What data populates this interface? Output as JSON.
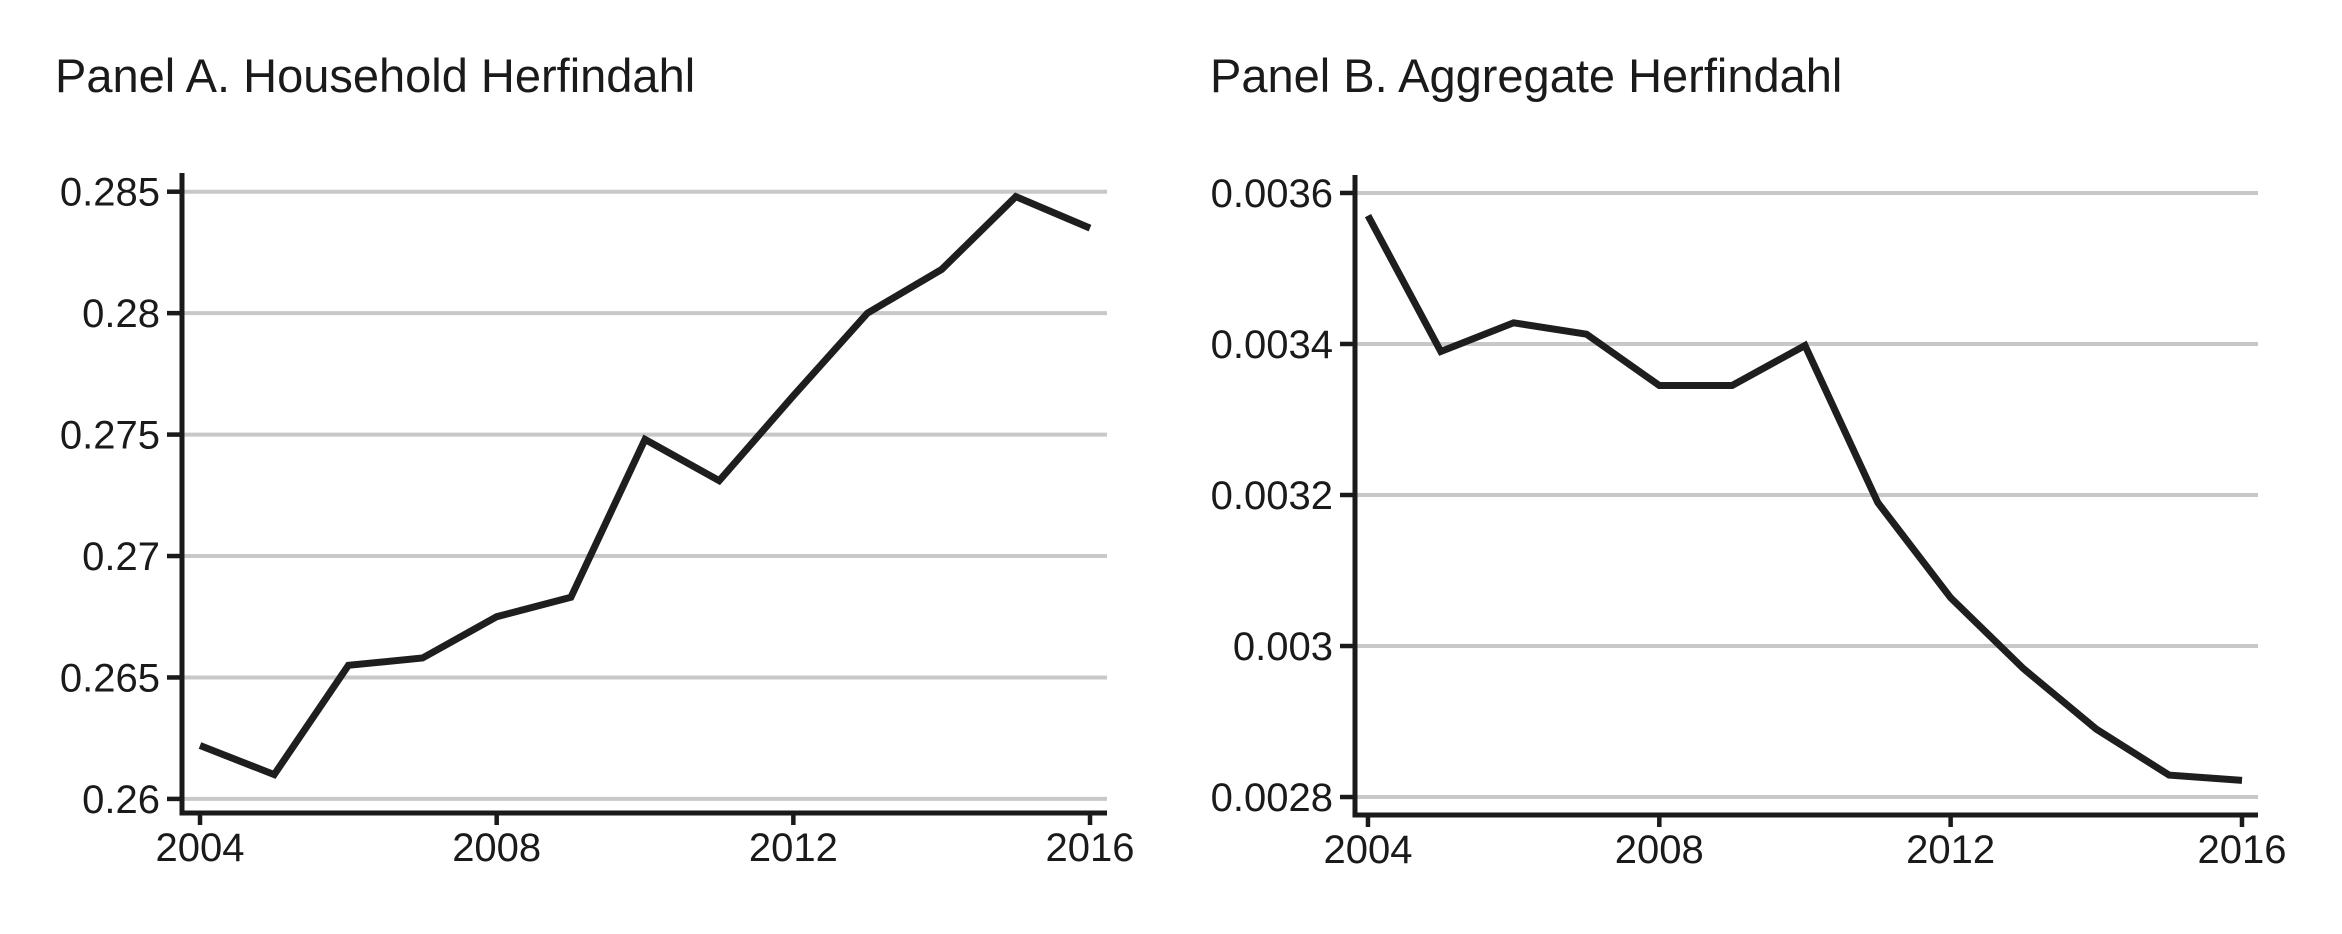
{
  "page": {
    "background": "#ffffff",
    "text_color": "#1a1a1a"
  },
  "chart_data": [
    {
      "type": "line",
      "title": "Panel A. Household Herfindahl",
      "xlabel": "",
      "ylabel": "",
      "legend": "none",
      "grid": "horizontal",
      "line_color": "#1e1e1e",
      "grid_color": "#c8c8c8",
      "axis_color": "#1a1a1a",
      "x": [
        2004,
        2005,
        2006,
        2007,
        2008,
        2009,
        2010,
        2011,
        2012,
        2013,
        2014,
        2015,
        2016
      ],
      "series": [
        {
          "name": "Household Herfindahl",
          "values": [
            0.2622,
            0.261,
            0.2655,
            0.2658,
            0.2675,
            0.2683,
            0.2748,
            0.2731,
            0.2766,
            0.28,
            0.2818,
            0.2848,
            0.2835
          ]
        }
      ],
      "xticks": {
        "values": [
          2004,
          2008,
          2012,
          2016
        ],
        "labels": [
          "2004",
          "2008",
          "2012",
          "2016"
        ]
      },
      "yticks": {
        "values": [
          0.26,
          0.265,
          0.27,
          0.275,
          0.28,
          0.285
        ],
        "labels": [
          "0.26",
          "0.265",
          "0.27",
          "0.275",
          "0.28",
          "0.285"
        ]
      },
      "xlim": [
        2003.757,
        2016.229
      ],
      "ylim": [
        0.25942,
        0.28577
      ]
    },
    {
      "type": "line",
      "title": "Panel B. Aggregate Herfindahl",
      "xlabel": "",
      "ylabel": "",
      "legend": "none",
      "grid": "horizontal",
      "line_color": "#1e1e1e",
      "grid_color": "#c8c8c8",
      "axis_color": "#1a1a1a",
      "x": [
        2004,
        2005,
        2006,
        2007,
        2008,
        2009,
        2010,
        2011,
        2012,
        2013,
        2014,
        2015,
        2016
      ],
      "series": [
        {
          "name": "Aggregate Herfindahl",
          "values": [
            0.00357,
            0.00339,
            0.003428,
            0.003413,
            0.003345,
            0.003345,
            0.003398,
            0.00319,
            0.003064,
            0.00297,
            0.00289,
            0.002829,
            0.002822
          ]
        }
      ],
      "xticks": {
        "values": [
          2004,
          2008,
          2012,
          2016
        ],
        "labels": [
          "2004",
          "2008",
          "2012",
          "2016"
        ]
      },
      "yticks": {
        "values": [
          0.0028,
          0.003,
          0.0032,
          0.0034,
          0.0036
        ],
        "labels": [
          "0.0028",
          "0.003",
          "0.0032",
          "0.0034",
          "0.0036"
        ]
      },
      "xlim": [
        2003.822,
        2016.22
      ],
      "ylim": [
        0.0027762,
        0.0036238
      ]
    }
  ]
}
